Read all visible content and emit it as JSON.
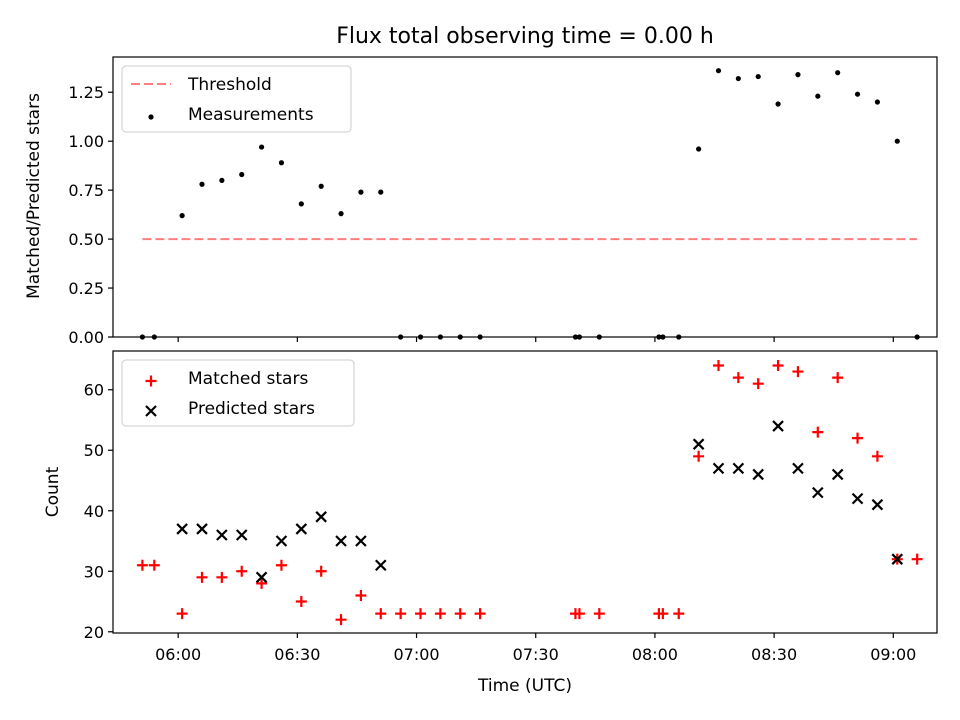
{
  "figure": {
    "title": "Flux total observing time = 0.00 h",
    "xlabel": "Time (UTC)",
    "x_ticks": [
      {
        "minutes": 360,
        "label": "06:00"
      },
      {
        "minutes": 390,
        "label": "06:30"
      },
      {
        "minutes": 420,
        "label": "07:00"
      },
      {
        "minutes": 450,
        "label": "07:30"
      },
      {
        "minutes": 480,
        "label": "08:00"
      },
      {
        "minutes": 510,
        "label": "08:30"
      },
      {
        "minutes": 540,
        "label": "09:00"
      }
    ],
    "xlim_minutes": [
      343.6,
      551.0
    ]
  },
  "chart_data": [
    {
      "type": "scatter",
      "ylabel": "Matched/Predicted stars",
      "ylim": [
        0,
        1.43
      ],
      "y_ticks": [
        {
          "value": 0,
          "label": "0.00"
        },
        {
          "value": 0.25,
          "label": "0.25"
        },
        {
          "value": 0.5,
          "label": "0.50"
        },
        {
          "value": 0.75,
          "label": "0.75"
        },
        {
          "value": 1.0,
          "label": "1.00"
        },
        {
          "value": 1.25,
          "label": "1.25"
        }
      ],
      "legend": {
        "placement": "top-left",
        "threshold_label": "Threshold",
        "measurements_label": "Measurements"
      },
      "threshold": {
        "value": 0.5,
        "x": [
          "05:51",
          "09:06"
        ],
        "color": "#ff7f7f"
      },
      "series": [
        {
          "marker": "dot",
          "color": "#000000",
          "points": [
            [
              "05:51",
              0
            ],
            [
              "05:54",
              0
            ],
            [
              "06:01",
              0.62
            ],
            [
              "06:06",
              0.78
            ],
            [
              "06:11",
              0.8
            ],
            [
              "06:16",
              0.83
            ],
            [
              "06:21",
              0.97
            ],
            [
              "06:26",
              0.89
            ],
            [
              "06:31",
              0.68
            ],
            [
              "06:36",
              0.77
            ],
            [
              "06:41",
              0.63
            ],
            [
              "06:46",
              0.74
            ],
            [
              "06:51",
              0.74
            ],
            [
              "06:56",
              0
            ],
            [
              "07:01",
              0
            ],
            [
              "07:06",
              0
            ],
            [
              "07:11",
              0
            ],
            [
              "07:16",
              0
            ],
            [
              "07:40",
              0
            ],
            [
              "07:41",
              0
            ],
            [
              "07:46",
              0
            ],
            [
              "08:01",
              0
            ],
            [
              "08:02",
              0
            ],
            [
              "08:06",
              0
            ],
            [
              "08:11",
              0.96
            ],
            [
              "08:16",
              1.36
            ],
            [
              "08:21",
              1.32
            ],
            [
              "08:26",
              1.33
            ],
            [
              "08:31",
              1.19
            ],
            [
              "08:36",
              1.34
            ],
            [
              "08:41",
              1.23
            ],
            [
              "08:46",
              1.35
            ],
            [
              "08:51",
              1.24
            ],
            [
              "08:56",
              1.2
            ],
            [
              "09:01",
              1.0
            ],
            [
              "09:06",
              0
            ]
          ]
        }
      ]
    },
    {
      "type": "scatter",
      "ylabel": "Count",
      "ylim": [
        19.8,
        66.4
      ],
      "y_ticks": [
        {
          "value": 20,
          "label": "20"
        },
        {
          "value": 30,
          "label": "30"
        },
        {
          "value": 40,
          "label": "40"
        },
        {
          "value": 50,
          "label": "50"
        },
        {
          "value": 60,
          "label": "60"
        }
      ],
      "legend": {
        "placement": "top-left"
      },
      "series": [
        {
          "name": "Matched stars",
          "marker": "plus",
          "color": "#ff0000",
          "points": [
            [
              "05:51",
              31
            ],
            [
              "05:54",
              31
            ],
            [
              "06:01",
              23
            ],
            [
              "06:06",
              29
            ],
            [
              "06:11",
              29
            ],
            [
              "06:16",
              30
            ],
            [
              "06:21",
              28
            ],
            [
              "06:26",
              31
            ],
            [
              "06:31",
              25
            ],
            [
              "06:36",
              30
            ],
            [
              "06:41",
              22
            ],
            [
              "06:46",
              26
            ],
            [
              "06:51",
              23
            ],
            [
              "06:56",
              23
            ],
            [
              "07:01",
              23
            ],
            [
              "07:06",
              23
            ],
            [
              "07:11",
              23
            ],
            [
              "07:16",
              23
            ],
            [
              "07:40",
              23
            ],
            [
              "07:41",
              23
            ],
            [
              "07:46",
              23
            ],
            [
              "08:01",
              23
            ],
            [
              "08:02",
              23
            ],
            [
              "08:06",
              23
            ],
            [
              "08:11",
              49
            ],
            [
              "08:16",
              64
            ],
            [
              "08:21",
              62
            ],
            [
              "08:26",
              61
            ],
            [
              "08:31",
              64
            ],
            [
              "08:36",
              63
            ],
            [
              "08:41",
              53
            ],
            [
              "08:46",
              62
            ],
            [
              "08:51",
              52
            ],
            [
              "08:56",
              49
            ],
            [
              "09:01",
              32
            ],
            [
              "09:06",
              32
            ]
          ]
        },
        {
          "name": "Predicted stars",
          "marker": "x",
          "color": "#000000",
          "points": [
            [
              "06:01",
              37
            ],
            [
              "06:06",
              37
            ],
            [
              "06:11",
              36
            ],
            [
              "06:16",
              36
            ],
            [
              "06:21",
              29
            ],
            [
              "06:26",
              35
            ],
            [
              "06:31",
              37
            ],
            [
              "06:36",
              39
            ],
            [
              "06:41",
              35
            ],
            [
              "06:46",
              35
            ],
            [
              "06:51",
              31
            ],
            [
              "08:11",
              51
            ],
            [
              "08:16",
              47
            ],
            [
              "08:21",
              47
            ],
            [
              "08:26",
              46
            ],
            [
              "08:31",
              54
            ],
            [
              "08:36",
              47
            ],
            [
              "08:41",
              43
            ],
            [
              "08:46",
              46
            ],
            [
              "08:51",
              42
            ],
            [
              "08:56",
              41
            ],
            [
              "09:01",
              32
            ]
          ]
        }
      ]
    }
  ]
}
